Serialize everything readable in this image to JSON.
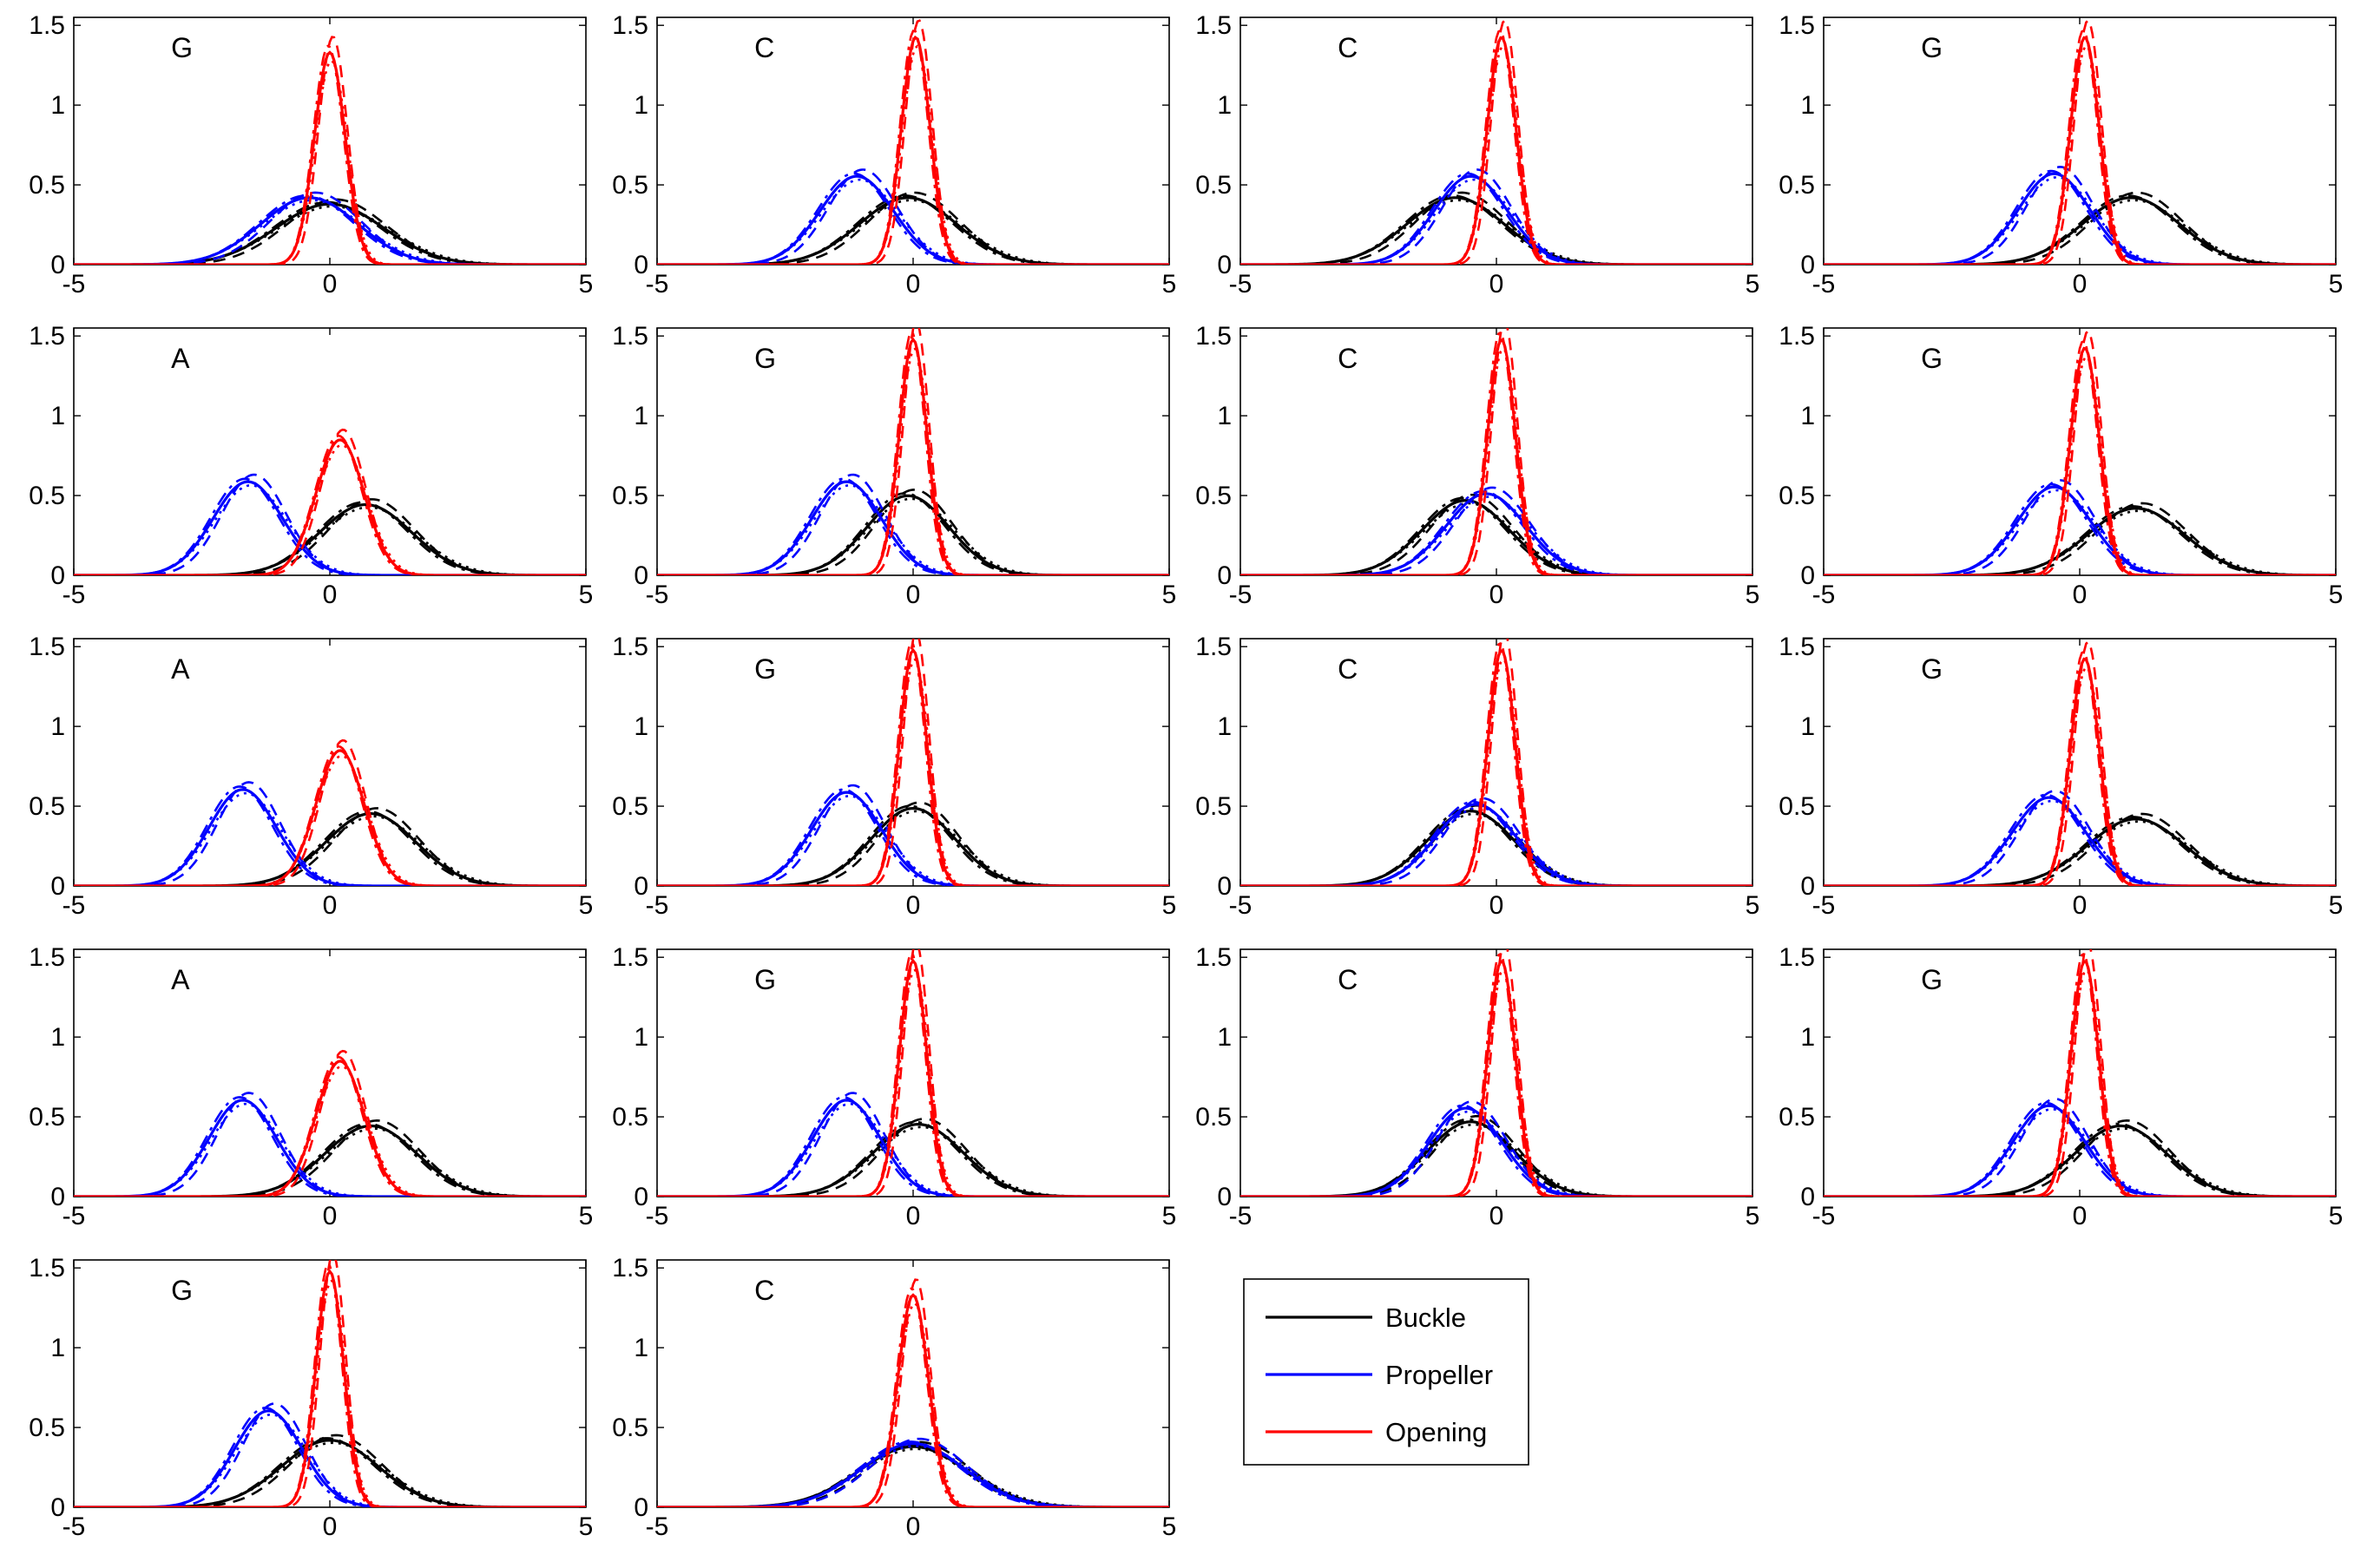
{
  "chart_data": {
    "type": "line",
    "grid": false,
    "layout": "5 rows x 4 columns of small multiples (last row has 2 panels plus legend)",
    "xlim": [
      -5,
      5
    ],
    "ylim": [
      0,
      1.55
    ],
    "x_ticks": [
      "-5",
      "0",
      "5"
    ],
    "y_ticks": [
      "0",
      "0.5",
      "1",
      "1.5"
    ],
    "legend": {
      "placement": "row 5, column 3",
      "entries": [
        {
          "label": "Buckle",
          "color": "#000000"
        },
        {
          "label": "Propeller",
          "color": "#0000ff"
        },
        {
          "label": "Opening",
          "color": "#ff0000"
        }
      ]
    },
    "series_colors": {
      "Buckle": "#000000",
      "Propeller": "#0000ff",
      "Opening": "#ff0000"
    },
    "line_styles": [
      "solid",
      "dashed",
      "dash-dot",
      "dotted"
    ],
    "note_units": "Each curve is a Gaussian density with mean mu and standard deviation sd (x in data units).",
    "panels": [
      {
        "label": "G",
        "row": 1,
        "col": 1,
        "series": [
          {
            "name": "Buckle",
            "mu": 0.0,
            "sd": 1.05
          },
          {
            "name": "Propeller",
            "mu": -0.4,
            "sd": 0.95
          },
          {
            "name": "Opening",
            "mu": 0.0,
            "sd": 0.3
          }
        ]
      },
      {
        "label": "C",
        "row": 1,
        "col": 2,
        "series": [
          {
            "name": "Buckle",
            "mu": -0.1,
            "sd": 0.95
          },
          {
            "name": "Propeller",
            "mu": -1.1,
            "sd": 0.72
          },
          {
            "name": "Opening",
            "mu": 0.05,
            "sd": 0.28
          }
        ]
      },
      {
        "label": "C",
        "row": 1,
        "col": 3,
        "series": [
          {
            "name": "Buckle",
            "mu": -0.8,
            "sd": 0.95
          },
          {
            "name": "Propeller",
            "mu": -0.5,
            "sd": 0.72
          },
          {
            "name": "Opening",
            "mu": 0.1,
            "sd": 0.28
          }
        ]
      },
      {
        "label": "G",
        "row": 1,
        "col": 4,
        "series": [
          {
            "name": "Buckle",
            "mu": 1.0,
            "sd": 0.95
          },
          {
            "name": "Propeller",
            "mu": -0.5,
            "sd": 0.7
          },
          {
            "name": "Opening",
            "mu": 0.1,
            "sd": 0.28
          }
        ]
      },
      {
        "label": "A",
        "row": 2,
        "col": 1,
        "series": [
          {
            "name": "Buckle",
            "mu": 0.7,
            "sd": 0.9
          },
          {
            "name": "Propeller",
            "mu": -1.6,
            "sd": 0.68
          },
          {
            "name": "Opening",
            "mu": 0.2,
            "sd": 0.47
          }
        ]
      },
      {
        "label": "G",
        "row": 2,
        "col": 2,
        "series": [
          {
            "name": "Buckle",
            "mu": -0.1,
            "sd": 0.8
          },
          {
            "name": "Propeller",
            "mu": -1.3,
            "sd": 0.68
          },
          {
            "name": "Opening",
            "mu": 0.0,
            "sd": 0.27
          }
        ]
      },
      {
        "label": "C",
        "row": 2,
        "col": 3,
        "series": [
          {
            "name": "Buckle",
            "mu": -0.6,
            "sd": 0.85
          },
          {
            "name": "Propeller",
            "mu": -0.2,
            "sd": 0.78
          },
          {
            "name": "Opening",
            "mu": 0.1,
            "sd": 0.27
          }
        ]
      },
      {
        "label": "G",
        "row": 2,
        "col": 4,
        "series": [
          {
            "name": "Buckle",
            "mu": 1.1,
            "sd": 0.95
          },
          {
            "name": "Propeller",
            "mu": -0.5,
            "sd": 0.72
          },
          {
            "name": "Opening",
            "mu": 0.1,
            "sd": 0.28
          }
        ]
      },
      {
        "label": "A",
        "row": 3,
        "col": 1,
        "series": [
          {
            "name": "Buckle",
            "mu": 0.8,
            "sd": 0.88
          },
          {
            "name": "Propeller",
            "mu": -1.7,
            "sd": 0.66
          },
          {
            "name": "Opening",
            "mu": 0.2,
            "sd": 0.47
          }
        ]
      },
      {
        "label": "G",
        "row": 3,
        "col": 2,
        "series": [
          {
            "name": "Buckle",
            "mu": 0.0,
            "sd": 0.82
          },
          {
            "name": "Propeller",
            "mu": -1.3,
            "sd": 0.68
          },
          {
            "name": "Opening",
            "mu": 0.0,
            "sd": 0.27
          }
        ]
      },
      {
        "label": "C",
        "row": 3,
        "col": 3,
        "series": [
          {
            "name": "Buckle",
            "mu": -0.5,
            "sd": 0.85
          },
          {
            "name": "Propeller",
            "mu": -0.4,
            "sd": 0.78
          },
          {
            "name": "Opening",
            "mu": 0.1,
            "sd": 0.27
          }
        ]
      },
      {
        "label": "G",
        "row": 3,
        "col": 4,
        "series": [
          {
            "name": "Buckle",
            "mu": 1.1,
            "sd": 0.95
          },
          {
            "name": "Propeller",
            "mu": -0.6,
            "sd": 0.72
          },
          {
            "name": "Opening",
            "mu": 0.1,
            "sd": 0.28
          }
        ]
      },
      {
        "label": "A",
        "row": 4,
        "col": 1,
        "series": [
          {
            "name": "Buckle",
            "mu": 0.8,
            "sd": 0.9
          },
          {
            "name": "Propeller",
            "mu": -1.7,
            "sd": 0.66
          },
          {
            "name": "Opening",
            "mu": 0.2,
            "sd": 0.47
          }
        ]
      },
      {
        "label": "G",
        "row": 4,
        "col": 2,
        "series": [
          {
            "name": "Buckle",
            "mu": 0.1,
            "sd": 0.88
          },
          {
            "name": "Propeller",
            "mu": -1.3,
            "sd": 0.66
          },
          {
            "name": "Opening",
            "mu": 0.0,
            "sd": 0.27
          }
        ]
      },
      {
        "label": "C",
        "row": 4,
        "col": 3,
        "series": [
          {
            "name": "Buckle",
            "mu": -0.5,
            "sd": 0.85
          },
          {
            "name": "Propeller",
            "mu": -0.6,
            "sd": 0.72
          },
          {
            "name": "Opening",
            "mu": 0.1,
            "sd": 0.27
          }
        ]
      },
      {
        "label": "G",
        "row": 4,
        "col": 4,
        "series": [
          {
            "name": "Buckle",
            "mu": 0.8,
            "sd": 0.9
          },
          {
            "name": "Propeller",
            "mu": -0.6,
            "sd": 0.7
          },
          {
            "name": "Opening",
            "mu": 0.1,
            "sd": 0.27
          }
        ]
      },
      {
        "label": "G",
        "row": 5,
        "col": 1,
        "series": [
          {
            "name": "Buckle",
            "mu": 0.0,
            "sd": 0.95
          },
          {
            "name": "Propeller",
            "mu": -1.2,
            "sd": 0.66
          },
          {
            "name": "Opening",
            "mu": 0.0,
            "sd": 0.27
          }
        ]
      },
      {
        "label": "C",
        "row": 5,
        "col": 2,
        "series": [
          {
            "name": "Buckle",
            "mu": 0.0,
            "sd": 1.05
          },
          {
            "name": "Propeller",
            "mu": 0.0,
            "sd": 1.0
          },
          {
            "name": "Opening",
            "mu": 0.0,
            "sd": 0.3
          }
        ]
      }
    ]
  }
}
